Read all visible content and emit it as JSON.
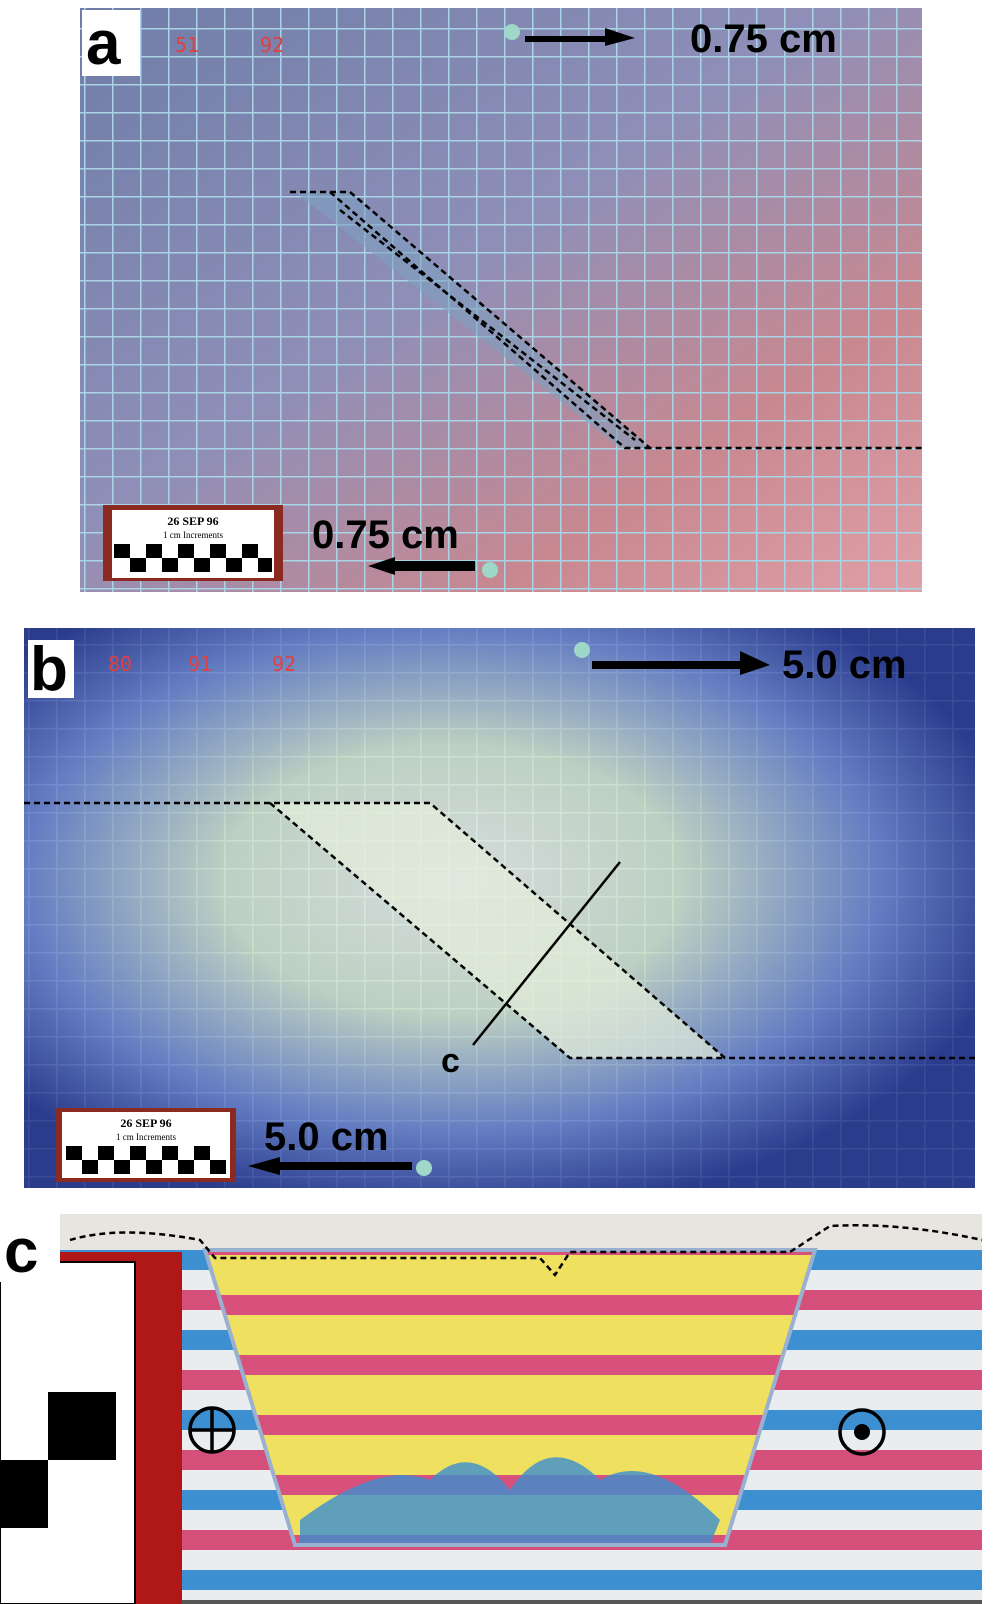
{
  "panels": [
    {
      "label": "a",
      "counter": [
        "51",
        "92"
      ],
      "displacement_top": "0.75 cm",
      "displacement_bottom": "0.75 cm",
      "scale_card": {
        "date": "26 SEP 96",
        "caption": "1 cm Increments"
      }
    },
    {
      "label": "b",
      "counter": [
        "80",
        "91",
        "92"
      ],
      "displacement_top": "5.0 cm",
      "displacement_bottom": "5.0 cm",
      "scale_card": {
        "date": "26 SEP 96",
        "caption": "1 cm Increments"
      },
      "section_label": "c"
    },
    {
      "label": "c"
    }
  ]
}
